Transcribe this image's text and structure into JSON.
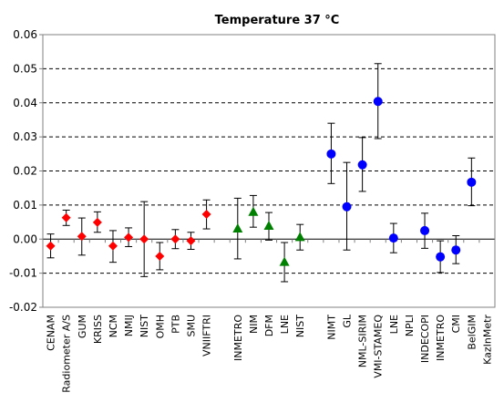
{
  "chart_data": {
    "type": "scatter",
    "title": "Temperature  37 °C",
    "xlabel": "",
    "ylabel": "",
    "ylim": [
      -0.02,
      0.06
    ],
    "yticks": [
      -0.02,
      -0.01,
      0.0,
      0.01,
      0.02,
      0.03,
      0.04,
      0.05,
      0.06
    ],
    "ytick_labels": [
      "-0.02",
      "-0.01",
      "0.00",
      "0.01",
      "0.02",
      "0.03",
      "0.04",
      "0.05",
      "0.06"
    ],
    "grid": "horizontal",
    "colors": {
      "red": "#ff0000",
      "green": "#008000",
      "blue": "#0000ff"
    },
    "points": [
      {
        "label": "CENAM",
        "y": -0.002,
        "low": -0.0055,
        "high": 0.0015,
        "color": "red",
        "marker": "diamond"
      },
      {
        "label": "Radiometer A/S",
        "y": 0.0063,
        "low": 0.004,
        "high": 0.0085,
        "color": "red",
        "marker": "diamond"
      },
      {
        "label": "GUM",
        "y": 0.0008,
        "low": -0.0047,
        "high": 0.0062,
        "color": "red",
        "marker": "diamond"
      },
      {
        "label": "KRISS",
        "y": 0.0049,
        "low": 0.002,
        "high": 0.008,
        "color": "red",
        "marker": "diamond"
      },
      {
        "label": "NCM",
        "y": -0.002,
        "low": -0.0068,
        "high": 0.0025,
        "color": "red",
        "marker": "diamond"
      },
      {
        "label": "NMIJ",
        "y": 0.0005,
        "low": -0.0022,
        "high": 0.0033,
        "color": "red",
        "marker": "diamond"
      },
      {
        "label": "NIST",
        "y": 0.0,
        "low": -0.011,
        "high": 0.011,
        "color": "red",
        "marker": "diamond"
      },
      {
        "label": "OMH",
        "y": -0.005,
        "low": -0.009,
        "high": -0.001,
        "color": "red",
        "marker": "diamond"
      },
      {
        "label": "PTB",
        "y": 0.0,
        "low": -0.0028,
        "high": 0.0028,
        "color": "red",
        "marker": "diamond"
      },
      {
        "label": "SMU",
        "y": -0.0005,
        "low": -0.003,
        "high": 0.002,
        "color": "red",
        "marker": "diamond"
      },
      {
        "label": "VNIIFTRI",
        "y": 0.0073,
        "low": 0.003,
        "high": 0.0115,
        "color": "red",
        "marker": "diamond"
      },
      {
        "label": "",
        "y": null,
        "low": null,
        "high": null,
        "color": "",
        "marker": ""
      },
      {
        "label": "INMETRO",
        "y": 0.003,
        "low": -0.0058,
        "high": 0.012,
        "color": "green",
        "marker": "triangle"
      },
      {
        "label": "NIM",
        "y": 0.0079,
        "low": 0.0035,
        "high": 0.0128,
        "color": "green",
        "marker": "triangle"
      },
      {
        "label": "DFM",
        "y": 0.0038,
        "low": -0.0003,
        "high": 0.0078,
        "color": "green",
        "marker": "triangle"
      },
      {
        "label": "LNE",
        "y": -0.0068,
        "low": -0.0125,
        "high": -0.001,
        "color": "green",
        "marker": "triangle"
      },
      {
        "label": "NIST",
        "y": 0.0005,
        "low": -0.0032,
        "high": 0.0043,
        "color": "green",
        "marker": "triangle"
      },
      {
        "label": "",
        "y": null,
        "low": null,
        "high": null,
        "color": "",
        "marker": ""
      },
      {
        "label": "NIMT",
        "y": 0.025,
        "low": 0.0163,
        "high": 0.034,
        "color": "blue",
        "marker": "circle"
      },
      {
        "label": "GL",
        "y": 0.0095,
        "low": -0.0032,
        "high": 0.0225,
        "color": "blue",
        "marker": "circle"
      },
      {
        "label": "NML-SIRIM",
        "y": 0.0218,
        "low": 0.014,
        "high": 0.0298,
        "color": "blue",
        "marker": "circle"
      },
      {
        "label": "VMI-STAMEQ",
        "y": 0.0404,
        "low": 0.0295,
        "high": 0.0515,
        "color": "blue",
        "marker": "circle"
      },
      {
        "label": "LNE",
        "y": 0.0003,
        "low": -0.004,
        "high": 0.0046,
        "color": "blue",
        "marker": "circle"
      },
      {
        "label": "NPLI",
        "y": null,
        "low": null,
        "high": null,
        "color": "blue",
        "marker": "circle"
      },
      {
        "label": "INDECOPI",
        "y": 0.0025,
        "low": -0.0027,
        "high": 0.0076,
        "color": "blue",
        "marker": "circle"
      },
      {
        "label": "INMETRO",
        "y": -0.0052,
        "low": -0.0098,
        "high": -0.0005,
        "color": "blue",
        "marker": "circle"
      },
      {
        "label": "CMI",
        "y": -0.0032,
        "low": -0.0072,
        "high": 0.001,
        "color": "blue",
        "marker": "circle"
      },
      {
        "label": "BelGIM",
        "y": 0.0167,
        "low": 0.0098,
        "high": 0.0238,
        "color": "blue",
        "marker": "circle"
      },
      {
        "label": "KazInMetr",
        "y": null,
        "low": null,
        "high": null,
        "color": "blue",
        "marker": "circle"
      }
    ]
  }
}
